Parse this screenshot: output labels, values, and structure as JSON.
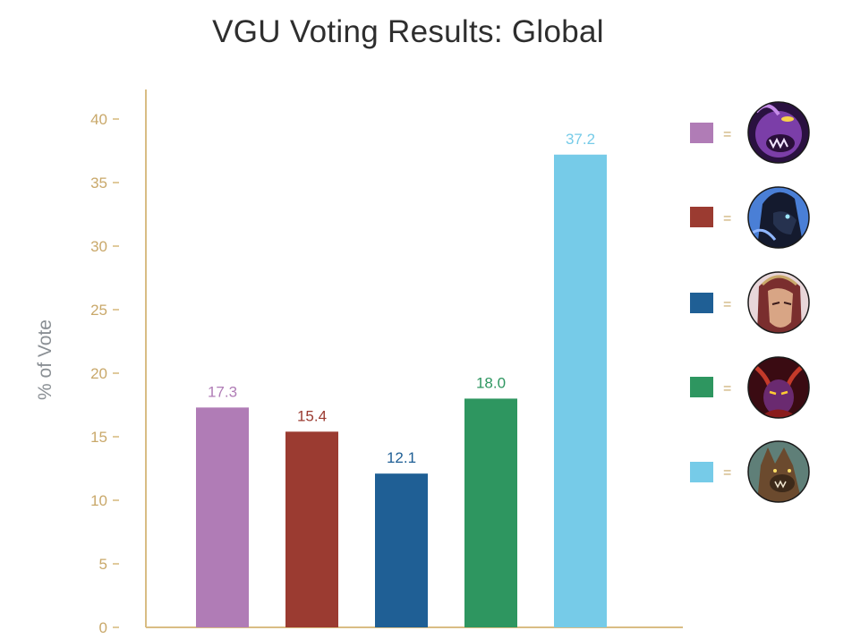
{
  "chart_data": {
    "type": "bar",
    "title": "VGU Voting Results: Global",
    "ylabel": "% of Vote",
    "xlabel": "",
    "ylim": [
      0,
      40
    ],
    "yticks": [
      0,
      5,
      10,
      15,
      20,
      25,
      30,
      35,
      40
    ],
    "grid": false,
    "values": [
      17.3,
      15.4,
      12.1,
      18.0,
      37.2
    ],
    "value_labels": [
      "17.3",
      "15.4",
      "12.1",
      "18.0",
      "37.2"
    ],
    "colors": [
      "#b07cb6",
      "#9b3b31",
      "#1f5f95",
      "#2e9660",
      "#76cbe8"
    ],
    "legend": {
      "placement": "right",
      "separator": "=",
      "entries": [
        {
          "color": "#b07cb6",
          "icon": "champion-portrait-purple-void-creature-icon"
        },
        {
          "color": "#9b3b31",
          "icon": "champion-portrait-dark-hooded-figure-icon"
        },
        {
          "color": "#1f5f95",
          "icon": "champion-portrait-armored-warrior-icon"
        },
        {
          "color": "#2e9660",
          "icon": "champion-portrait-horned-demon-icon"
        },
        {
          "color": "#76cbe8",
          "icon": "champion-portrait-werewolf-icon"
        }
      ]
    },
    "axis_color": "#d9bd84"
  }
}
